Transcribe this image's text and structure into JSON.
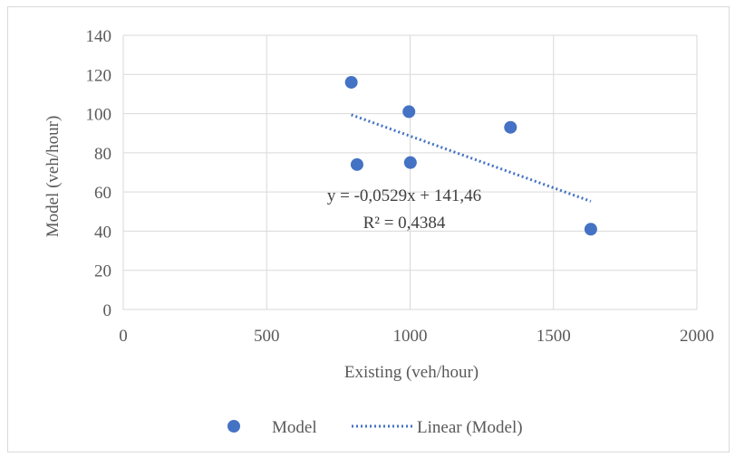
{
  "chart_data": {
    "type": "scatter",
    "title": "",
    "xlabel": "Existing (veh/hour)",
    "ylabel": "Model (veh/hour)",
    "xlim": [
      0,
      2000
    ],
    "ylim": [
      0,
      140
    ],
    "x_ticks": [
      0,
      500,
      1000,
      1500,
      2000
    ],
    "y_ticks": [
      0,
      20,
      40,
      60,
      80,
      100,
      120,
      140
    ],
    "grid": true,
    "legend_position": "bottom",
    "series": [
      {
        "name": "Model",
        "marker": "circle",
        "color": "#4472c4",
        "points": [
          {
            "x": 795,
            "y": 116
          },
          {
            "x": 815,
            "y": 74
          },
          {
            "x": 996,
            "y": 101
          },
          {
            "x": 1001,
            "y": 75
          },
          {
            "x": 1350,
            "y": 93
          },
          {
            "x": 1630,
            "y": 41
          }
        ]
      }
    ],
    "trendline": {
      "name": "Linear (Model)",
      "type": "linear",
      "style": "dotted",
      "color": "#4472c4",
      "slope": -0.0529,
      "intercept": 141.46,
      "x_range": [
        795,
        1630
      ]
    },
    "annotations": {
      "equation": "y = -0,0529x + 141,46",
      "r_squared": "R² = 0,4384"
    }
  },
  "colors": {
    "marker": "#4472c4",
    "gridline": "#d9d9d9",
    "text": "#595959"
  }
}
